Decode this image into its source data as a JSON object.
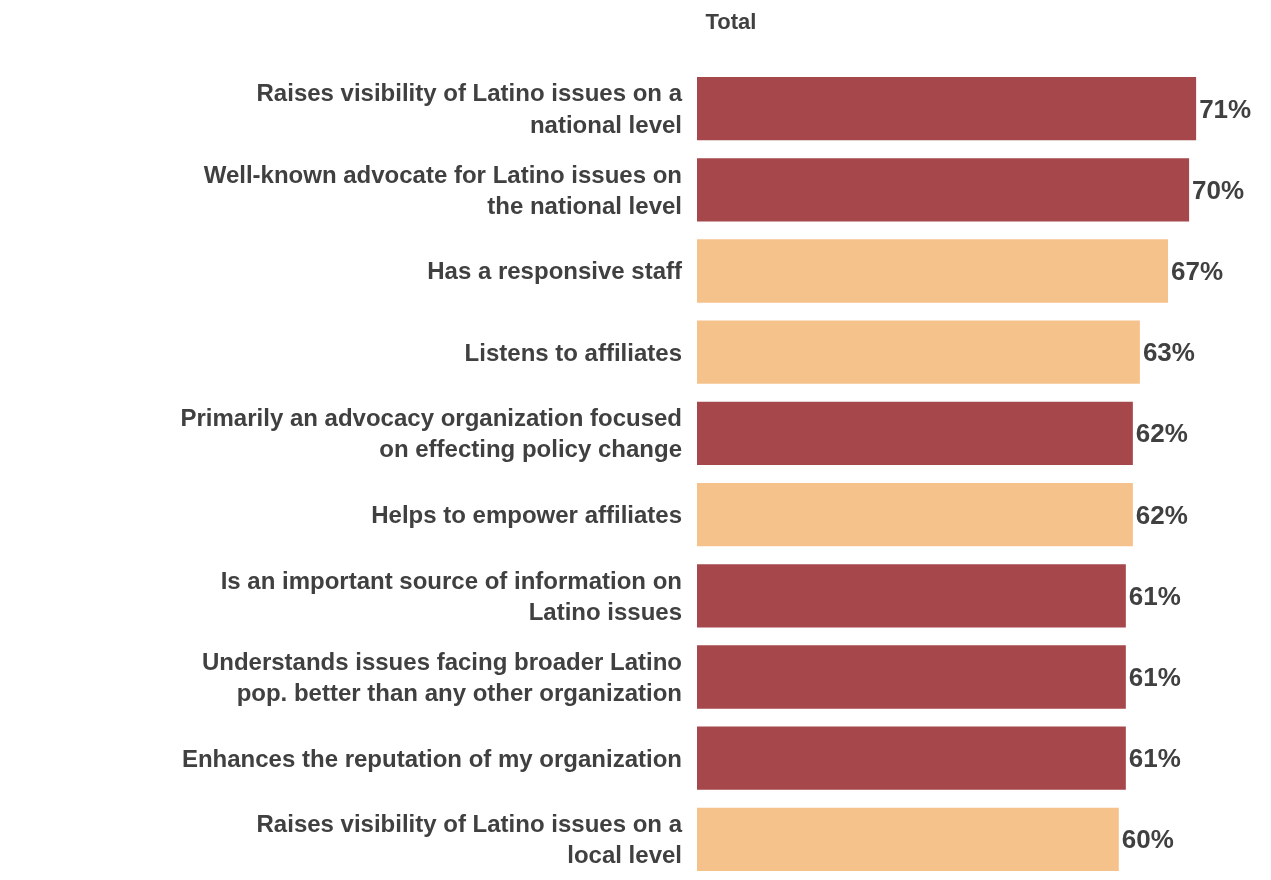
{
  "chart_data": {
    "type": "bar",
    "orientation": "horizontal",
    "title": "Total",
    "categories": [
      "Raises visibility of Latino issues on a national level",
      "Well-known advocate for Latino issues on the national level",
      "Has a responsive staff",
      "Listens to affiliates",
      "Primarily an advocacy organization focused on effecting policy change",
      "Helps to empower affiliates",
      "Is an important source of information on Latino issues",
      "Understands issues facing broader Latino pop. better than any other organization",
      "Enhances the reputation of my organization",
      "Raises visibility of Latino issues on a local level"
    ],
    "values": [
      71,
      70,
      67,
      63,
      62,
      62,
      61,
      61,
      61,
      60
    ],
    "value_labels": [
      "71%",
      "70%",
      "67%",
      "63%",
      "62%",
      "62%",
      "61%",
      "61%",
      "61%",
      "60%"
    ],
    "colors": [
      "#a5474b",
      "#a5474b",
      "#f6c28c",
      "#f6c28c",
      "#a5474b",
      "#f6c28c",
      "#a5474b",
      "#a5474b",
      "#a5474b",
      "#f6c28c"
    ],
    "legend": false
  }
}
